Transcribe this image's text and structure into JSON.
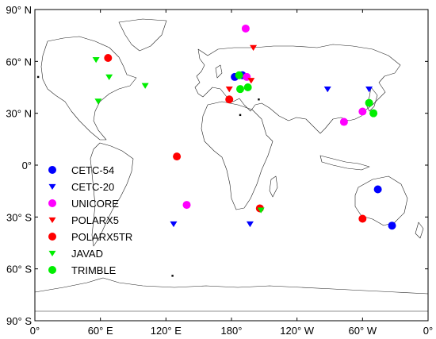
{
  "map": {
    "x_ticks": [
      {
        "label": "0°",
        "lon": 0
      },
      {
        "label": "60° E",
        "lon": 60
      },
      {
        "label": "120° E",
        "lon": 120
      },
      {
        "label": "180°",
        "lon": 180
      },
      {
        "label": "120° W",
        "lon": 240
      },
      {
        "label": "60° W",
        "lon": 300
      },
      {
        "label": "0°",
        "lon": 360
      }
    ],
    "y_ticks": [
      {
        "label": "90° N",
        "lat": 90
      },
      {
        "label": "60° N",
        "lat": 60
      },
      {
        "label": "30° N",
        "lat": 30
      },
      {
        "label": "0°",
        "lat": 0
      },
      {
        "label": "30° S",
        "lat": -30
      },
      {
        "label": "60° S",
        "lat": -60
      },
      {
        "label": "90° S",
        "lat": -90
      }
    ],
    "legend": [
      {
        "label": "CETC-54",
        "color": "#0000ff",
        "marker": "circle"
      },
      {
        "label": "CETC-20",
        "color": "#0000ff",
        "marker": "triangle"
      },
      {
        "label": "UNICORE",
        "color": "#ff00ff",
        "marker": "circle"
      },
      {
        "label": "POLARX5",
        "color": "#ff0000",
        "marker": "triangle"
      },
      {
        "label": "POLARX5TR",
        "color": "#ff0000",
        "marker": "circle"
      },
      {
        "label": "JAVAD",
        "color": "#00ee00",
        "marker": "triangle"
      },
      {
        "label": "TRIMBLE",
        "color": "#00ee00",
        "marker": "circle"
      }
    ],
    "stations": [
      {
        "group": "CETC-54",
        "lon": 190,
        "lat": 52
      },
      {
        "group": "CETC-54",
        "lon": 183,
        "lat": 51
      },
      {
        "group": "CETC-54",
        "lon": 314,
        "lat": -14
      },
      {
        "group": "CETC-54",
        "lon": 327,
        "lat": -35
      },
      {
        "group": "CETC-20",
        "lon": 268,
        "lat": 44
      },
      {
        "group": "CETC-20",
        "lon": 306,
        "lat": 44
      },
      {
        "group": "CETC-20",
        "lon": 127,
        "lat": -34
      },
      {
        "group": "CETC-20",
        "lon": 197,
        "lat": -34
      },
      {
        "group": "UNICORE",
        "lon": 193,
        "lat": 79
      },
      {
        "group": "UNICORE",
        "lon": 194,
        "lat": 51
      },
      {
        "group": "UNICORE",
        "lon": 283,
        "lat": 25
      },
      {
        "group": "UNICORE",
        "lon": 300,
        "lat": 31
      },
      {
        "group": "UNICORE",
        "lon": 139,
        "lat": -23
      },
      {
        "group": "POLARX5",
        "lon": 200,
        "lat": 68
      },
      {
        "group": "POLARX5",
        "lon": 178,
        "lat": 44
      },
      {
        "group": "POLARX5",
        "lon": 198,
        "lat": 49
      },
      {
        "group": "POLARX5TR",
        "lon": 67,
        "lat": 62
      },
      {
        "group": "POLARX5TR",
        "lon": 178,
        "lat": 38
      },
      {
        "group": "POLARX5TR",
        "lon": 130,
        "lat": 5
      },
      {
        "group": "POLARX5TR",
        "lon": 206,
        "lat": -25
      },
      {
        "group": "POLARX5TR",
        "lon": 300,
        "lat": -31
      },
      {
        "group": "JAVAD",
        "lon": 56,
        "lat": 61
      },
      {
        "group": "JAVAD",
        "lon": 68,
        "lat": 51
      },
      {
        "group": "JAVAD",
        "lon": 101,
        "lat": 46
      },
      {
        "group": "JAVAD",
        "lon": 58,
        "lat": 37
      },
      {
        "group": "JAVAD",
        "lon": 207,
        "lat": -26
      },
      {
        "group": "TRIMBLE",
        "lon": 187,
        "lat": 52
      },
      {
        "group": "TRIMBLE",
        "lon": 195,
        "lat": 45
      },
      {
        "group": "TRIMBLE",
        "lon": 188,
        "lat": 44
      },
      {
        "group": "TRIMBLE",
        "lon": 306,
        "lat": 36
      },
      {
        "group": "TRIMBLE",
        "lon": 310,
        "lat": 30
      }
    ],
    "dots": [
      {
        "lon": 3,
        "lat": 51
      },
      {
        "lon": 188,
        "lat": 29
      },
      {
        "lon": 205,
        "lat": 38
      },
      {
        "lon": 126,
        "lat": -64
      }
    ]
  }
}
